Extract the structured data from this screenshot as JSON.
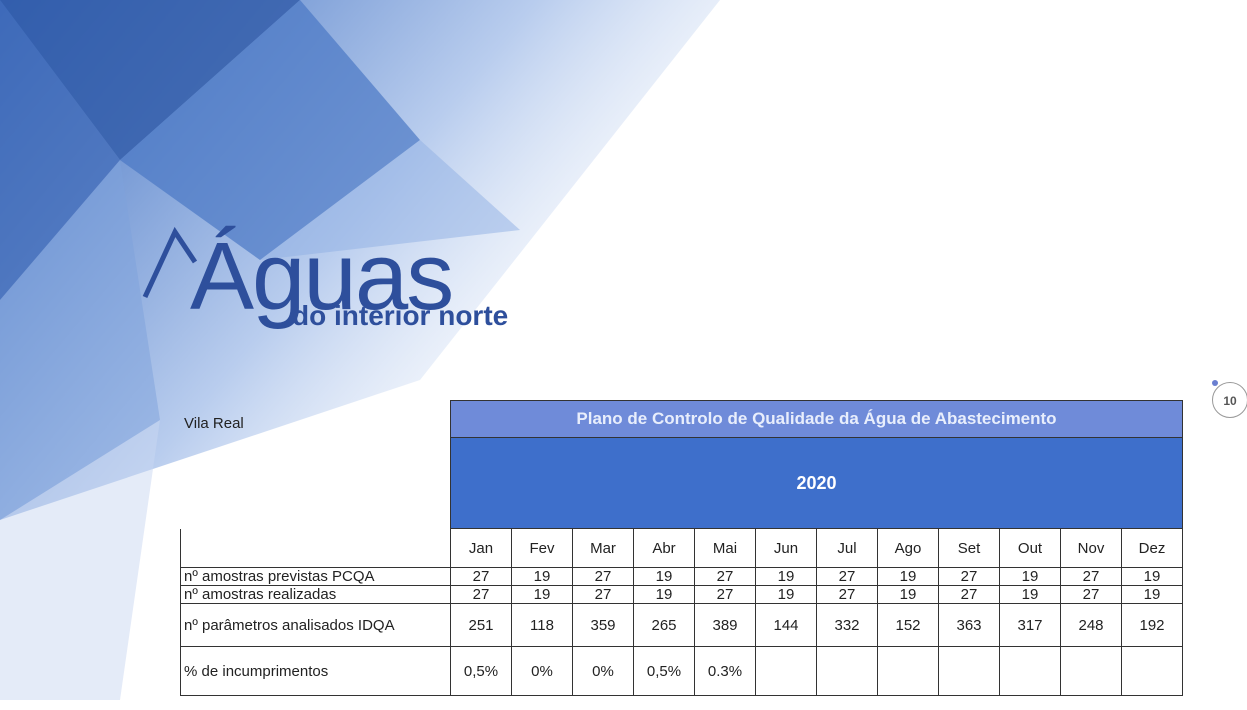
{
  "logo": {
    "name": "Águas",
    "tagline": "do interior norte"
  },
  "page_number": "10",
  "table": {
    "location": "Vila Real",
    "title": "Plano de Controlo de Qualidade da Água de Abastecimento",
    "year": "2020",
    "months": [
      "Jan",
      "Fev",
      "Mar",
      "Abr",
      "Mai",
      "Jun",
      "Jul",
      "Ago",
      "Set",
      "Out",
      "Nov",
      "Dez"
    ],
    "rows": [
      {
        "label": "nº amostras previstas PCQA",
        "cells": [
          "27",
          "19",
          "27",
          "19",
          "27",
          "19",
          "27",
          "19",
          "27",
          "19",
          "27",
          "19"
        ]
      },
      {
        "label": "nº amostras realizadas",
        "cells": [
          "27",
          "19",
          "27",
          "19",
          "27",
          "19",
          "27",
          "19",
          "27",
          "19",
          "27",
          "19"
        ]
      },
      {
        "label": "nº parâmetros analisados IDQA",
        "cells": [
          "251",
          "118",
          "359",
          "265",
          "389",
          "144",
          "332",
          "152",
          "363",
          "317",
          "248",
          "192"
        ]
      },
      {
        "label": "% de incumprimentos",
        "cells": [
          "0,5%",
          "0%",
          "0%",
          "0,5%",
          "0.3%"
        ]
      }
    ]
  }
}
